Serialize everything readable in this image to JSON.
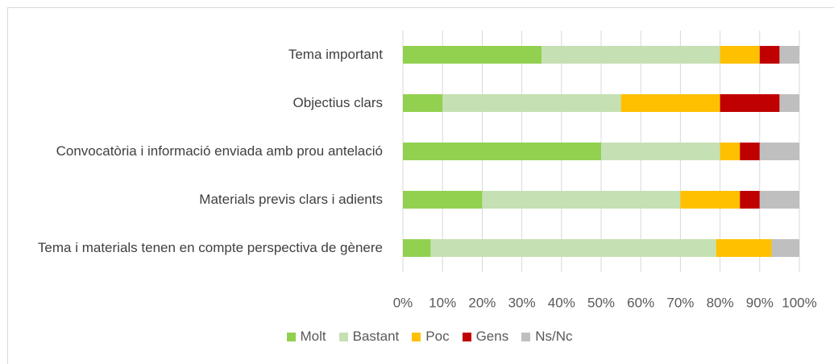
{
  "chart_data": {
    "type": "stacked-barh",
    "categories": [
      "Tema important",
      "Objectius clars",
      "Convocatòria i informació enviada amb prou antelació",
      "Materials previs clars i adients",
      "Tema i materials tenen en compte perspectiva de gènere"
    ],
    "series": [
      {
        "name": "Molt",
        "color": "#92d050",
        "values": [
          35,
          10,
          50,
          20,
          7
        ]
      },
      {
        "name": "Bastant",
        "color": "#c5e0b3",
        "values": [
          45,
          45,
          30,
          50,
          72
        ]
      },
      {
        "name": "Poc",
        "color": "#ffc000",
        "values": [
          10,
          25,
          5,
          15,
          14
        ]
      },
      {
        "name": "Gens",
        "color": "#c00000",
        "values": [
          5,
          15,
          5,
          5,
          0
        ]
      },
      {
        "name": "Ns/Nc",
        "color": "#bfbfbf",
        "values": [
          5,
          5,
          10,
          10,
          7
        ]
      }
    ],
    "xlim": [
      0,
      100
    ],
    "xticks": [
      {
        "value": 0,
        "label": "0%"
      },
      {
        "value": 10,
        "label": "10%"
      },
      {
        "value": 20,
        "label": "20%"
      },
      {
        "value": 30,
        "label": "30%"
      },
      {
        "value": 40,
        "label": "40%"
      },
      {
        "value": 50,
        "label": "50%"
      },
      {
        "value": 60,
        "label": "60%"
      },
      {
        "value": 70,
        "label": "70%"
      },
      {
        "value": 80,
        "label": "80%"
      },
      {
        "value": 90,
        "label": "90%"
      },
      {
        "value": 100,
        "label": "100%"
      }
    ],
    "grid": true,
    "legend": "bottom"
  }
}
